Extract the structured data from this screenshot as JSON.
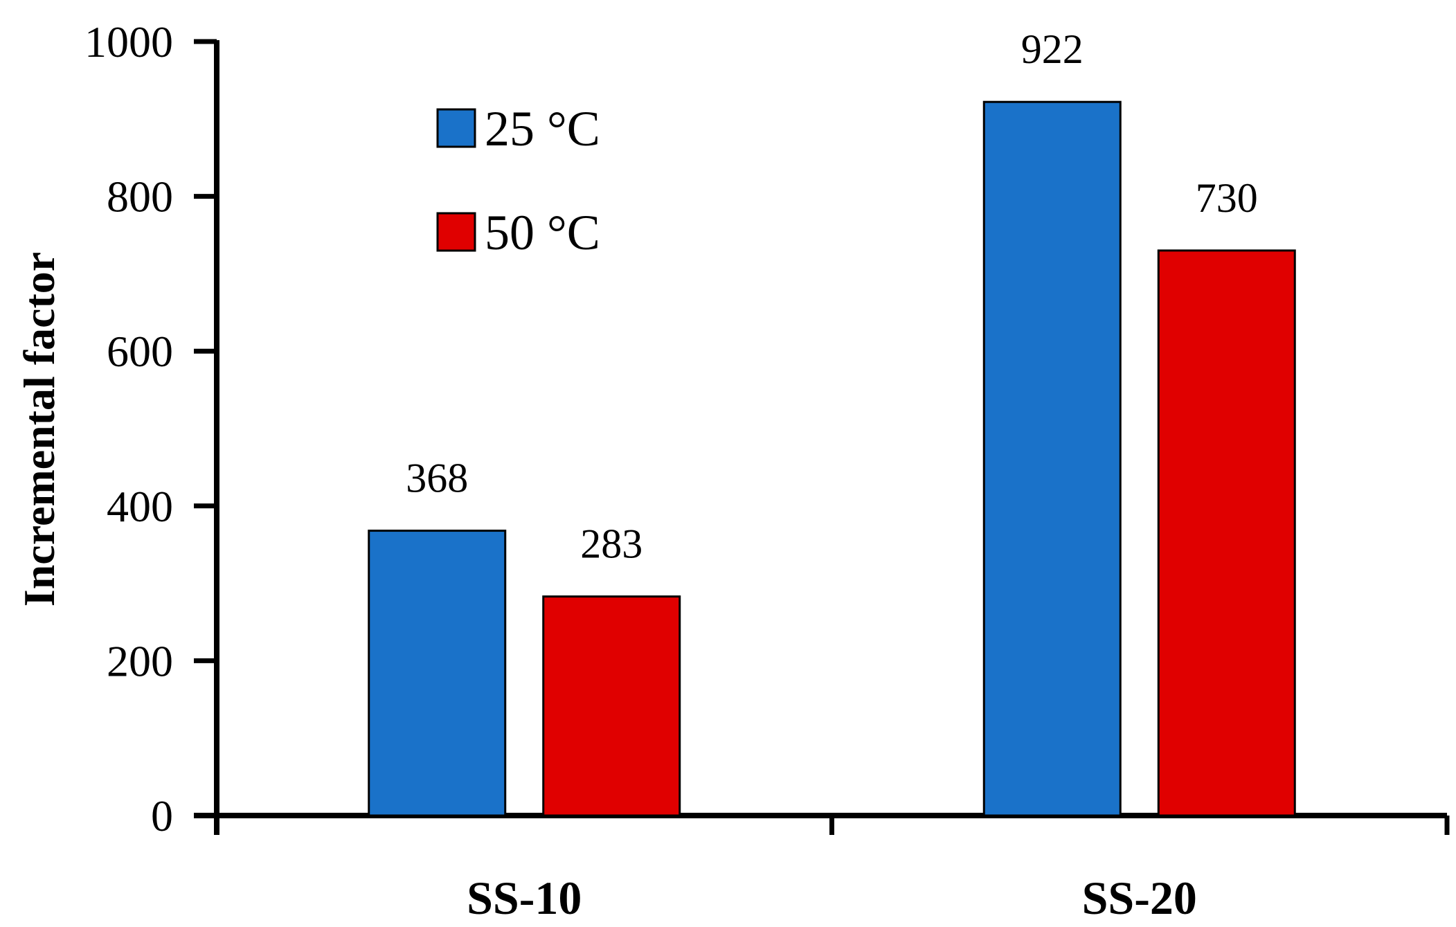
{
  "chart_data": {
    "type": "bar",
    "title": "",
    "xlabel": "",
    "ylabel": "Incremental factor",
    "ylim": [
      0,
      1000
    ],
    "yticks": [
      0,
      200,
      400,
      600,
      800,
      1000
    ],
    "categories": [
      "SS-10",
      "SS-20"
    ],
    "series": [
      {
        "name": "25 °C",
        "color": "#1a72c9",
        "values": [
          368,
          922
        ]
      },
      {
        "name": "50 °C",
        "color": "#e00000",
        "values": [
          283,
          730
        ]
      }
    ],
    "data_labels": true,
    "grid": false,
    "legend": "top-left inside"
  }
}
